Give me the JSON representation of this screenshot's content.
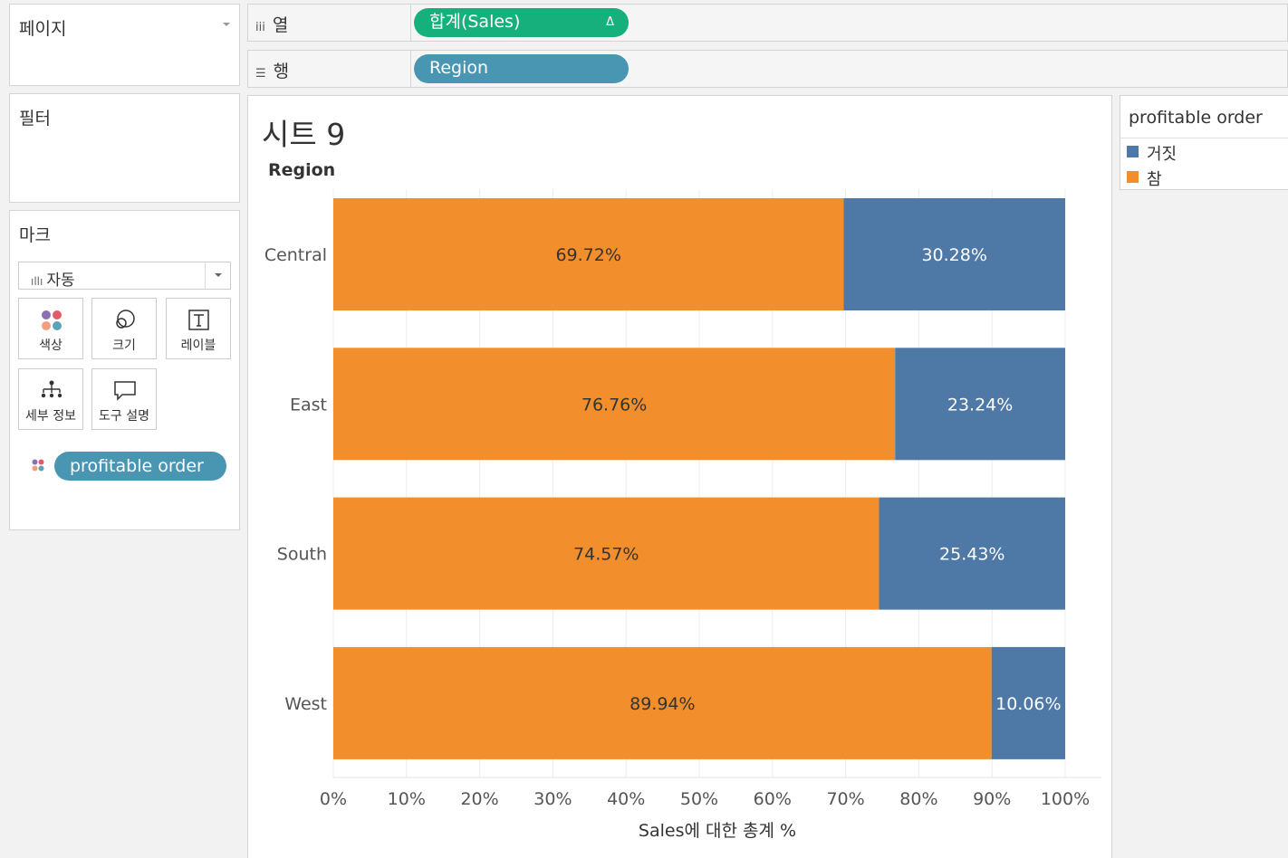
{
  "pages_panel": {
    "title": "페이지"
  },
  "filters_panel": {
    "title": "필터"
  },
  "marks_panel": {
    "title": "마크",
    "mark_type": "자동",
    "buttons": [
      "색상",
      "크기",
      "레이블",
      "세부 정보",
      "도구 설명"
    ],
    "color_pill": "profitable order"
  },
  "columns_shelf": {
    "label": "열",
    "pill": "합계(Sales)",
    "pill_delta": "Δ"
  },
  "rows_shelf": {
    "label": "행",
    "pill": "Region"
  },
  "sheet": {
    "title": "시트 9",
    "row_header": "Region"
  },
  "legend": {
    "title": "profitable order",
    "items": [
      {
        "label": "거짓",
        "color": "#4e79a7"
      },
      {
        "label": "참",
        "color": "#f28e2b"
      }
    ]
  },
  "colors": {
    "true": "#f28e2b",
    "false": "#4e79a7",
    "green_pill": "#16b07d",
    "blue_pill": "#4996b2"
  },
  "chart_data": {
    "type": "bar",
    "orientation": "horizontal",
    "stacked": true,
    "categories": [
      "Central",
      "East",
      "South",
      "West"
    ],
    "series": [
      {
        "name": "참",
        "values": [
          69.72,
          76.76,
          74.57,
          89.94
        ],
        "labels": [
          "69.72%",
          "76.76%",
          "74.57%",
          "89.94%"
        ]
      },
      {
        "name": "거짓",
        "values": [
          30.28,
          23.24,
          25.43,
          10.06
        ],
        "labels": [
          "30.28%",
          "23.24%",
          "25.43%",
          "10.06%"
        ]
      }
    ],
    "xlabel": "Sales에 대한 총계 %",
    "ylabel": "Region",
    "xlim": [
      0,
      100
    ],
    "xticks": [
      "0%",
      "10%",
      "20%",
      "30%",
      "40%",
      "50%",
      "60%",
      "70%",
      "80%",
      "90%",
      "100%"
    ],
    "grid": "vertical"
  }
}
